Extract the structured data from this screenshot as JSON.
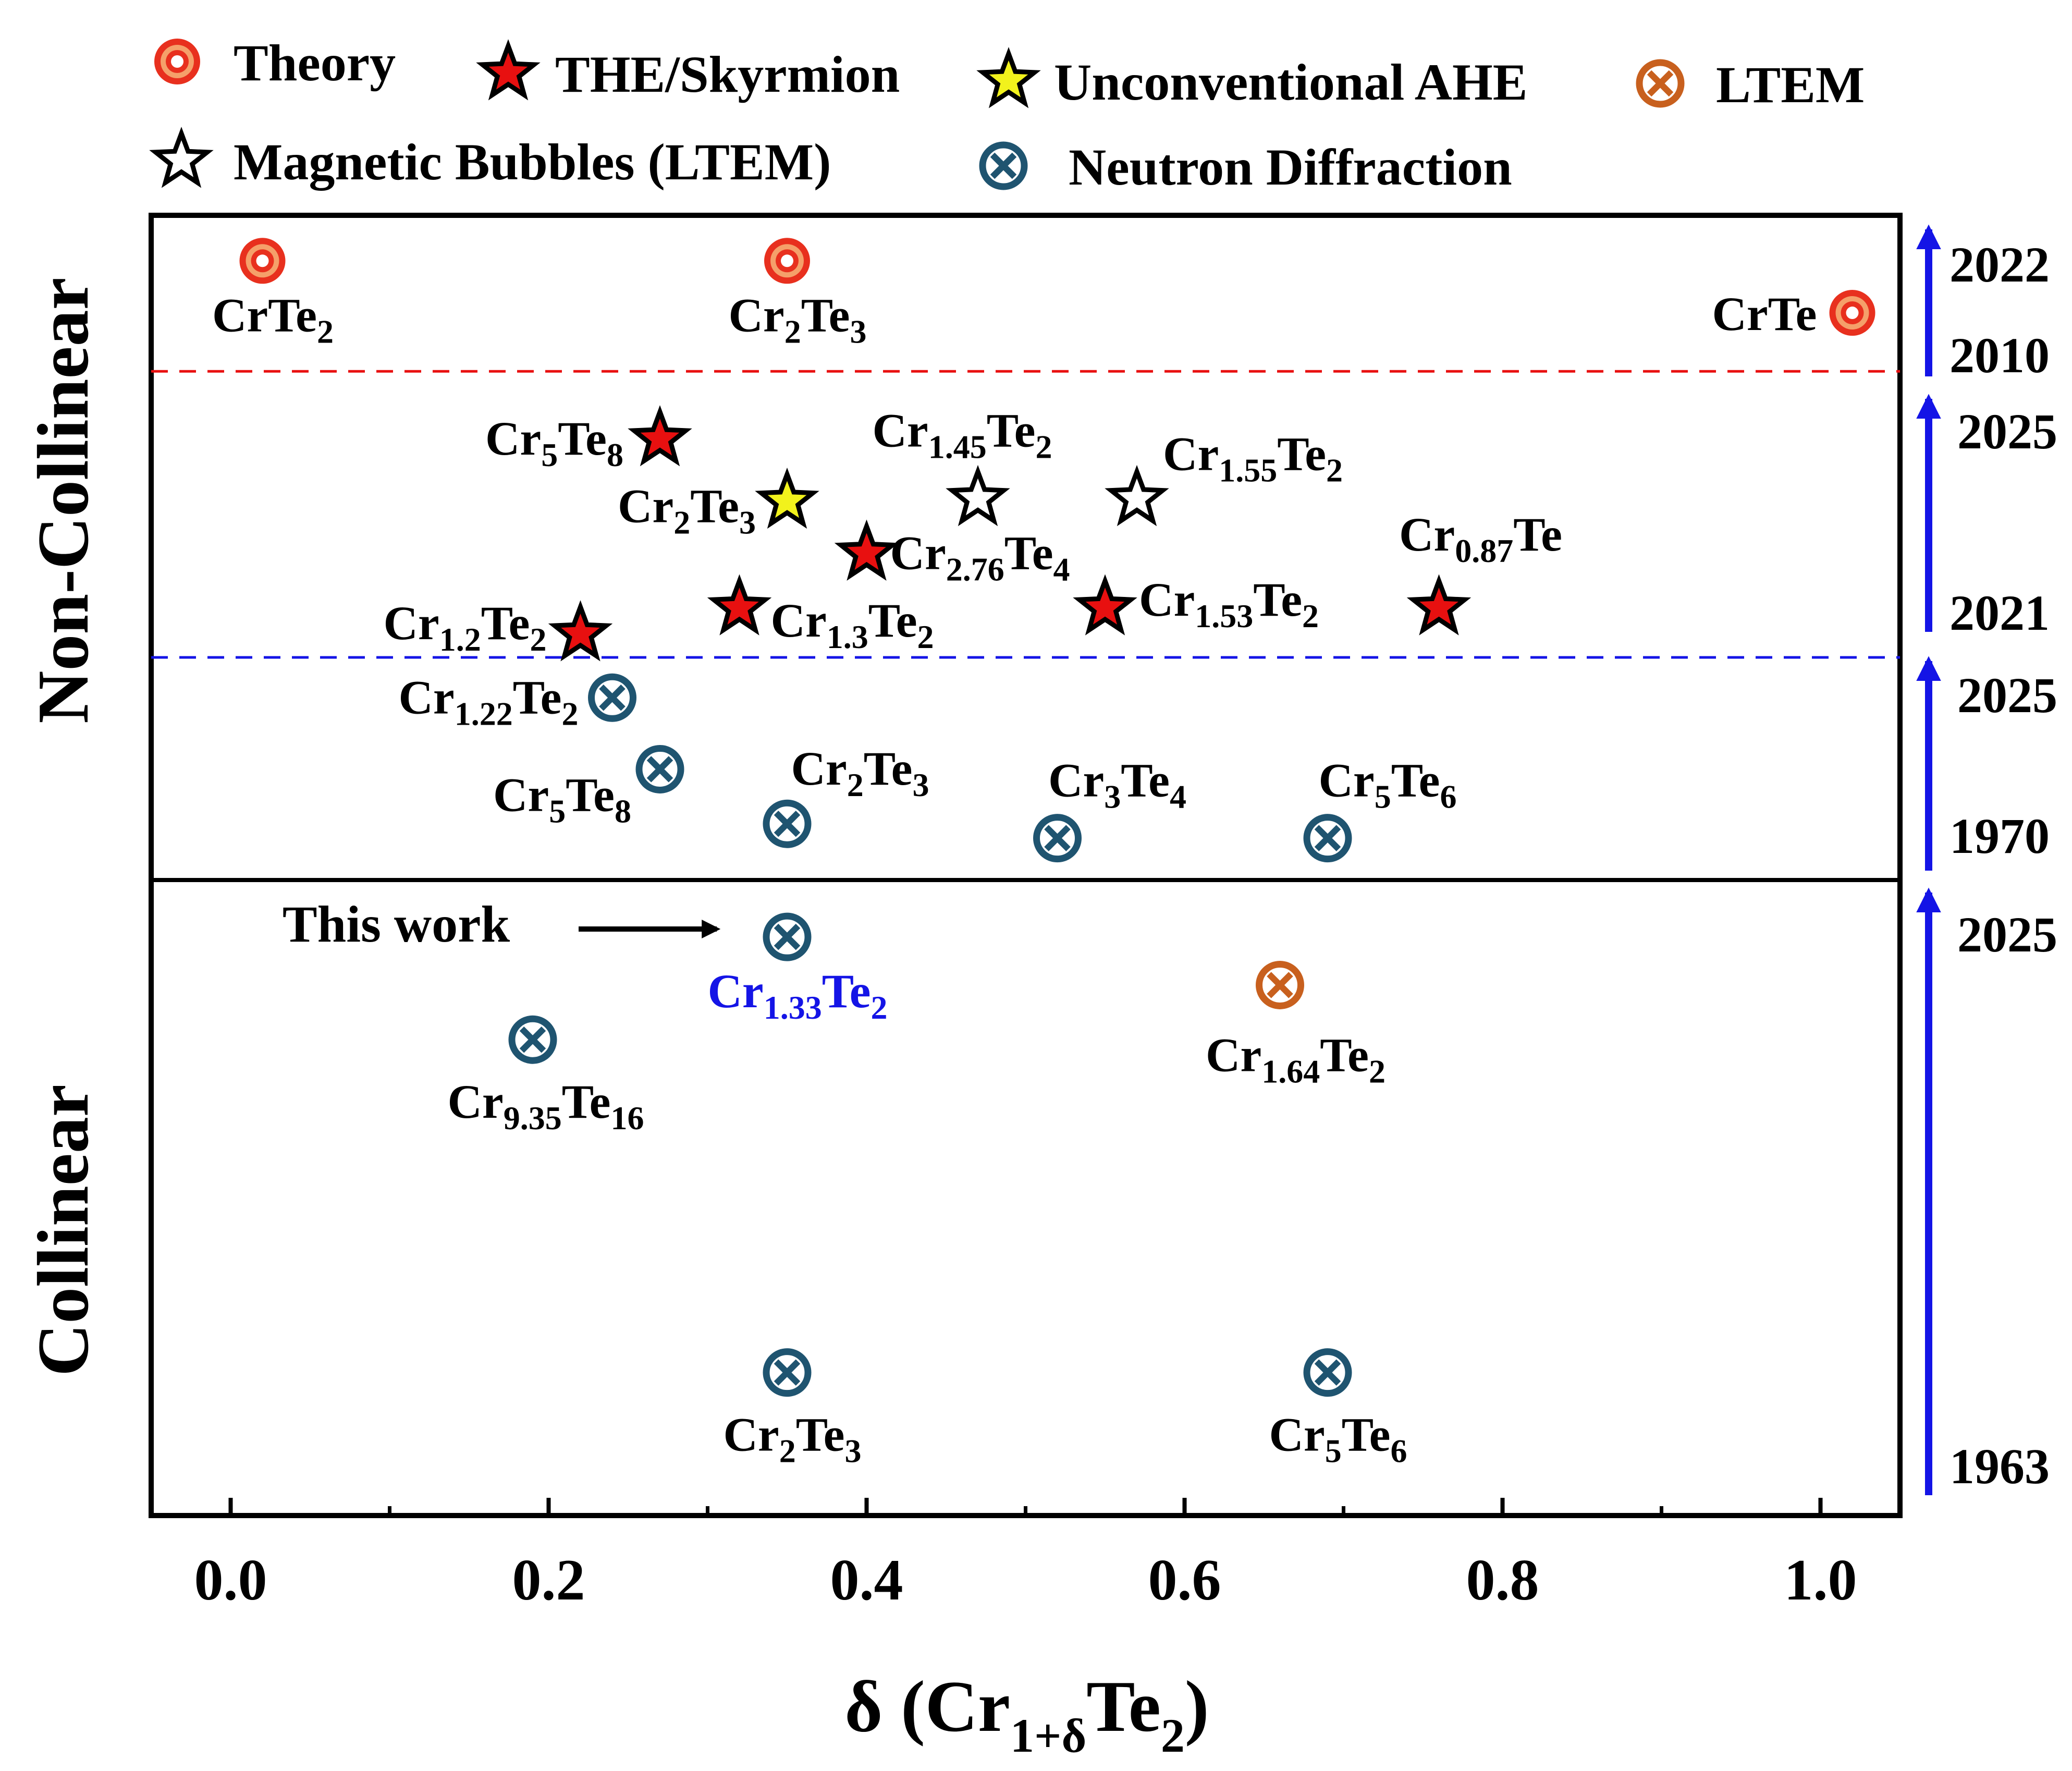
{
  "chart_data": {
    "type": "scatter",
    "title": "",
    "xlabel": "δ  (Cr1+δTe2)",
    "xlabel_parts": {
      "pre": "δ  (Cr",
      "sub1": "1+δ",
      "mid": "Te",
      "sub2": "2",
      "post": ")"
    },
    "xlim": [
      -0.05,
      1.05
    ],
    "xticks": [
      0.0,
      0.2,
      0.4,
      0.6,
      0.8,
      1.0
    ],
    "xtick_labels": [
      "0.0",
      "0.2",
      "0.4",
      "0.6",
      "0.8",
      "1.0"
    ],
    "legend_placement": "top",
    "regions": [
      {
        "key": "noncollinear",
        "label": "Non-Collinear"
      },
      {
        "key": "collinear",
        "label": "Collinear"
      }
    ],
    "categories": [
      {
        "key": "theory",
        "label": "Theory",
        "marker": "target",
        "color": "#e8301e",
        "fill": "#f5a06a"
      },
      {
        "key": "the",
        "label": "THE/Skyrmion",
        "marker": "star",
        "color": "#000000",
        "fill": "#e81010"
      },
      {
        "key": "ahe",
        "label": "Unconventional AHE",
        "marker": "star",
        "color": "#000000",
        "fill": "#f2f21c"
      },
      {
        "key": "ltem",
        "label": "LTEM",
        "marker": "otimes",
        "color": "#c8601e",
        "fill": "none"
      },
      {
        "key": "bubbles",
        "label": "Magnetic Bubbles (LTEM)",
        "marker": "star",
        "color": "#000000",
        "fill": "#ffffff"
      },
      {
        "key": "neutron",
        "label": "Neutron  Diffraction",
        "marker": "otimes",
        "color": "#1f5470",
        "fill": "none"
      }
    ],
    "points": [
      {
        "x": 0.02,
        "level": 0.965,
        "cat": "theory",
        "label": "CrTe2",
        "parts": [
          [
            "CrTe",
            ""
          ],
          [
            "2",
            "s"
          ]
        ]
      },
      {
        "x": 0.35,
        "level": 0.965,
        "cat": "theory",
        "label": "Cr2Te3",
        "parts": [
          [
            "Cr",
            ""
          ],
          [
            "2",
            "s"
          ],
          [
            "Te",
            ""
          ],
          [
            "3",
            "s"
          ]
        ]
      },
      {
        "x": 1.02,
        "level": 0.925,
        "cat": "theory",
        "label": "CrTe",
        "parts": [
          [
            "CrTe",
            ""
          ]
        ]
      },
      {
        "x": 0.27,
        "level": 0.828,
        "cat": "the",
        "label": "Cr5Te8",
        "parts": [
          [
            "Cr",
            ""
          ],
          [
            "5",
            "s"
          ],
          [
            "Te",
            ""
          ],
          [
            "8",
            "s"
          ]
        ]
      },
      {
        "x": 0.35,
        "level": 0.78,
        "cat": "ahe",
        "label": "Cr2Te3",
        "parts": [
          [
            "Cr",
            ""
          ],
          [
            "2",
            "s"
          ],
          [
            "Te",
            ""
          ],
          [
            "3",
            "s"
          ]
        ]
      },
      {
        "x": 0.47,
        "level": 0.782,
        "cat": "bubbles",
        "label": "Cr1.45Te2",
        "parts": [
          [
            "Cr",
            ""
          ],
          [
            "1.45",
            "s"
          ],
          [
            "Te",
            ""
          ],
          [
            "2",
            "s"
          ]
        ]
      },
      {
        "x": 0.57,
        "level": 0.782,
        "cat": "bubbles",
        "label": "Cr1.55Te2",
        "parts": [
          [
            "Cr",
            ""
          ],
          [
            "1.55",
            "s"
          ],
          [
            "Te",
            ""
          ],
          [
            "2",
            "s"
          ]
        ]
      },
      {
        "x": 0.4,
        "level": 0.74,
        "cat": "the",
        "label": "Cr2.76Te4",
        "parts": [
          [
            "Cr",
            ""
          ],
          [
            "2.76",
            "s"
          ],
          [
            "Te",
            ""
          ],
          [
            "4",
            "s"
          ]
        ]
      },
      {
        "x": 0.22,
        "level": 0.678,
        "cat": "the",
        "label": "Cr1.2Te2",
        "parts": [
          [
            "Cr",
            ""
          ],
          [
            "1.2",
            "s"
          ],
          [
            "Te",
            ""
          ],
          [
            "2",
            "s"
          ]
        ]
      },
      {
        "x": 0.32,
        "level": 0.698,
        "cat": "the",
        "label": "Cr1.3Te2",
        "parts": [
          [
            "Cr",
            ""
          ],
          [
            "1.3",
            "s"
          ],
          [
            "Te",
            ""
          ],
          [
            "2",
            "s"
          ]
        ]
      },
      {
        "x": 0.55,
        "level": 0.698,
        "cat": "the",
        "label": "Cr1.53Te2",
        "parts": [
          [
            "Cr",
            ""
          ],
          [
            "1.53",
            "s"
          ],
          [
            "Te",
            ""
          ],
          [
            "2",
            "s"
          ]
        ]
      },
      {
        "x": 0.76,
        "level": 0.698,
        "cat": "the",
        "label": "Cr0.87Te",
        "parts": [
          [
            "Cr",
            ""
          ],
          [
            "0.87",
            "s"
          ],
          [
            "Te",
            ""
          ]
        ]
      },
      {
        "x": 0.24,
        "level": 0.629,
        "cat": "neutron",
        "label": "Cr1.22Te2",
        "parts": [
          [
            "Cr",
            ""
          ],
          [
            "1.22",
            "s"
          ],
          [
            "Te",
            ""
          ],
          [
            "2",
            "s"
          ]
        ]
      },
      {
        "x": 0.27,
        "level": 0.574,
        "cat": "neutron",
        "label": "Cr5Te8",
        "parts": [
          [
            "Cr",
            ""
          ],
          [
            "5",
            "s"
          ],
          [
            "Te",
            ""
          ],
          [
            "8",
            "s"
          ]
        ]
      },
      {
        "x": 0.35,
        "level": 0.532,
        "cat": "neutron",
        "label": "Cr2Te3",
        "parts": [
          [
            "Cr",
            ""
          ],
          [
            "2",
            "s"
          ],
          [
            "Te",
            ""
          ],
          [
            "3",
            "s"
          ]
        ]
      },
      {
        "x": 0.52,
        "level": 0.521,
        "cat": "neutron",
        "label": "Cr3Te4",
        "parts": [
          [
            "Cr",
            ""
          ],
          [
            "3",
            "s"
          ],
          [
            "Te",
            ""
          ],
          [
            "4",
            "s"
          ]
        ]
      },
      {
        "x": 0.69,
        "level": 0.521,
        "cat": "neutron",
        "label": "Cr5Te6",
        "parts": [
          [
            "Cr",
            ""
          ],
          [
            "5",
            "s"
          ],
          [
            "Te",
            ""
          ],
          [
            "6",
            "s"
          ]
        ]
      },
      {
        "x": 0.35,
        "level": 0.445,
        "cat": "neutron",
        "label": "Cr1.33Te2",
        "parts": [
          [
            "Cr",
            ""
          ],
          [
            "1.33",
            "s"
          ],
          [
            "Te",
            ""
          ],
          [
            "2",
            "s"
          ]
        ],
        "highlight": true
      },
      {
        "x": 0.66,
        "level": 0.408,
        "cat": "ltem",
        "label": "Cr1.64Te2",
        "parts": [
          [
            "Cr",
            ""
          ],
          [
            "1.64",
            "s"
          ],
          [
            "Te",
            ""
          ],
          [
            "2",
            "s"
          ]
        ]
      },
      {
        "x": 0.19,
        "level": 0.366,
        "cat": "neutron",
        "label": "Cr9.35Te16",
        "parts": [
          [
            "Cr",
            ""
          ],
          [
            "9.35",
            "s"
          ],
          [
            "Te",
            ""
          ],
          [
            "16",
            "s"
          ]
        ]
      },
      {
        "x": 0.35,
        "level": 0.11,
        "cat": "neutron",
        "label": "Cr2Te3",
        "parts": [
          [
            "Cr",
            ""
          ],
          [
            "2",
            "s"
          ],
          [
            "Te",
            ""
          ],
          [
            "3",
            "s"
          ]
        ]
      },
      {
        "x": 0.69,
        "level": 0.11,
        "cat": "neutron",
        "label": "Cr5Te6",
        "parts": [
          [
            "Cr",
            ""
          ],
          [
            "5",
            "s"
          ],
          [
            "Te",
            ""
          ],
          [
            "6",
            "s"
          ]
        ]
      }
    ],
    "annotation": {
      "text": "This work",
      "color": "#1414e6"
    },
    "timeline": [
      {
        "from": 1963,
        "to": 2025
      },
      {
        "from": 1970,
        "to": 2025
      },
      {
        "from": 2021,
        "to": 2025
      },
      {
        "from": 2010,
        "to": 2022
      }
    ],
    "timeline_labels": [
      "2022",
      "2010",
      "2025",
      "2021",
      "2025",
      "1970",
      "2025",
      "1963"
    ],
    "timeline_color": "#1414e6",
    "dashed_lines": [
      {
        "level": 0.88,
        "color": "#e81010"
      },
      {
        "level": 0.66,
        "color": "#1414e6"
      }
    ],
    "grid": false
  }
}
